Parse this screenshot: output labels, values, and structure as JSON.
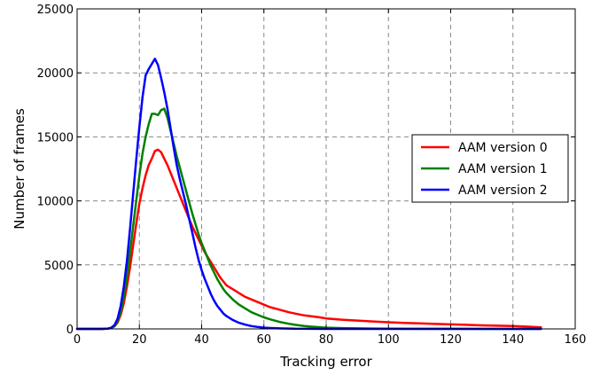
{
  "chart_data": {
    "type": "line",
    "title": "",
    "xlabel": "Tracking error",
    "ylabel": "Number of frames",
    "xlim": [
      0,
      160
    ],
    "ylim": [
      0,
      25000
    ],
    "xticks": [
      0,
      20,
      40,
      60,
      80,
      100,
      120,
      140,
      160
    ],
    "yticks": [
      0,
      5000,
      10000,
      15000,
      20000,
      25000
    ],
    "grid": true,
    "legend_position": "center-right",
    "series": [
      {
        "name": "AAM version 0",
        "color": "#ff0000",
        "x": [
          0,
          8,
          10,
          11,
          12,
          13,
          14,
          15,
          16,
          17,
          18,
          19,
          20,
          21,
          22,
          23,
          24,
          25,
          26,
          27,
          28,
          29,
          30,
          31,
          32,
          33,
          34,
          35,
          36,
          37,
          38,
          39,
          40,
          41,
          42,
          43,
          44,
          45,
          46,
          47,
          48,
          50,
          52,
          54,
          56,
          58,
          60,
          62,
          65,
          68,
          70,
          73,
          75,
          78,
          80,
          85,
          90,
          95,
          100,
          105,
          110,
          115,
          120,
          125,
          130,
          135,
          140,
          145,
          149
        ],
        "values": [
          0,
          0,
          30,
          80,
          200,
          500,
          1100,
          2000,
          3300,
          4800,
          6500,
          8200,
          9800,
          11000,
          12000,
          12800,
          13300,
          13900,
          14000,
          13800,
          13300,
          12800,
          12200,
          11600,
          11000,
          10400,
          9800,
          9200,
          8600,
          8000,
          7500,
          7000,
          6500,
          6000,
          5600,
          5200,
          4800,
          4400,
          4000,
          3700,
          3400,
          3100,
          2800,
          2500,
          2300,
          2100,
          1900,
          1700,
          1500,
          1300,
          1200,
          1050,
          1000,
          900,
          820,
          720,
          650,
          580,
          520,
          470,
          430,
          390,
          350,
          320,
          280,
          250,
          220,
          170,
          120
        ]
      },
      {
        "name": "AAM version 1",
        "color": "#008000",
        "x": [
          0,
          8,
          10,
          11,
          12,
          13,
          14,
          15,
          16,
          17,
          18,
          19,
          20,
          21,
          22,
          23,
          24,
          25,
          26,
          27,
          28,
          29,
          30,
          31,
          32,
          33,
          34,
          35,
          36,
          37,
          38,
          39,
          40,
          41,
          42,
          43,
          44,
          45,
          46,
          47,
          48,
          50,
          52,
          54,
          56,
          58,
          60,
          62,
          65,
          68,
          70,
          73,
          75,
          78,
          80,
          85,
          90,
          95,
          100,
          110,
          120,
          130,
          140,
          149
        ],
        "values": [
          0,
          0,
          30,
          80,
          200,
          600,
          1300,
          2500,
          4000,
          6000,
          8000,
          10000,
          12000,
          13700,
          15000,
          16000,
          16800,
          16800,
          16700,
          17100,
          17200,
          16500,
          15500,
          14500,
          13500,
          12600,
          11700,
          10800,
          9900,
          9000,
          8200,
          7400,
          6700,
          6100,
          5500,
          4900,
          4400,
          3900,
          3500,
          3100,
          2800,
          2300,
          1900,
          1600,
          1300,
          1100,
          900,
          750,
          550,
          400,
          320,
          230,
          180,
          130,
          100,
          60,
          40,
          25,
          15,
          8,
          4,
          2,
          1,
          0
        ]
      },
      {
        "name": "AAM version 2",
        "color": "#0000ff",
        "x": [
          0,
          8,
          10,
          11,
          12,
          13,
          14,
          15,
          16,
          17,
          18,
          19,
          20,
          21,
          22,
          23,
          24,
          25,
          26,
          27,
          28,
          29,
          30,
          31,
          32,
          33,
          34,
          35,
          36,
          37,
          38,
          39,
          40,
          41,
          42,
          43,
          44,
          45,
          46,
          47,
          48,
          50,
          52,
          54,
          56,
          58,
          60,
          62,
          65,
          68,
          70,
          75,
          80,
          90,
          100,
          149
        ],
        "values": [
          0,
          0,
          30,
          100,
          300,
          800,
          1800,
          3300,
          5300,
          7800,
          10500,
          13200,
          15800,
          18100,
          19800,
          20300,
          20700,
          21100,
          20600,
          19600,
          18500,
          17200,
          15700,
          14200,
          12800,
          11700,
          10700,
          9700,
          8600,
          7500,
          6400,
          5400,
          4600,
          3900,
          3300,
          2700,
          2200,
          1800,
          1500,
          1200,
          1000,
          700,
          480,
          330,
          220,
          150,
          100,
          70,
          40,
          25,
          15,
          6,
          2,
          1,
          0,
          0
        ]
      }
    ]
  }
}
